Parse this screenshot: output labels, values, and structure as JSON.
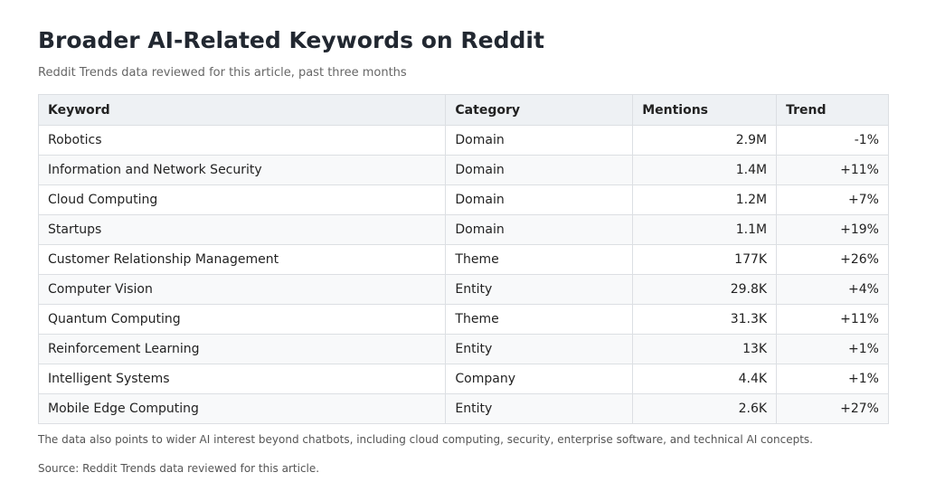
{
  "header": {
    "title": "Broader AI-Related Keywords on Reddit",
    "subtitle": "Reddit Trends data reviewed for this article, past three months"
  },
  "table": {
    "columns": [
      "Keyword",
      "Category",
      "Mentions",
      "Trend"
    ],
    "rows": [
      [
        "Robotics",
        "Domain",
        "2.9M",
        "-1%"
      ],
      [
        "Information and Network Security",
        "Domain",
        "1.4M",
        "+11%"
      ],
      [
        "Cloud Computing",
        "Domain",
        "1.2M",
        "+7%"
      ],
      [
        "Startups",
        "Domain",
        "1.1M",
        "+19%"
      ],
      [
        "Customer Relationship Management",
        "Theme",
        "177K",
        "+26%"
      ],
      [
        "Computer Vision",
        "Entity",
        "29.8K",
        "+4%"
      ],
      [
        "Quantum Computing",
        "Theme",
        "31.3K",
        "+11%"
      ],
      [
        "Reinforcement Learning",
        "Entity",
        "13K",
        "+1%"
      ],
      [
        "Intelligent Systems",
        "Company",
        "4.4K",
        "+1%"
      ],
      [
        "Mobile Edge Computing",
        "Entity",
        "2.6K",
        "+27%"
      ]
    ]
  },
  "footer": {
    "note": "The data also points to wider AI interest beyond chatbots, including cloud computing, security, enterprise software, and technical AI concepts.",
    "source": "Source: Reddit Trends data reviewed for this article."
  }
}
